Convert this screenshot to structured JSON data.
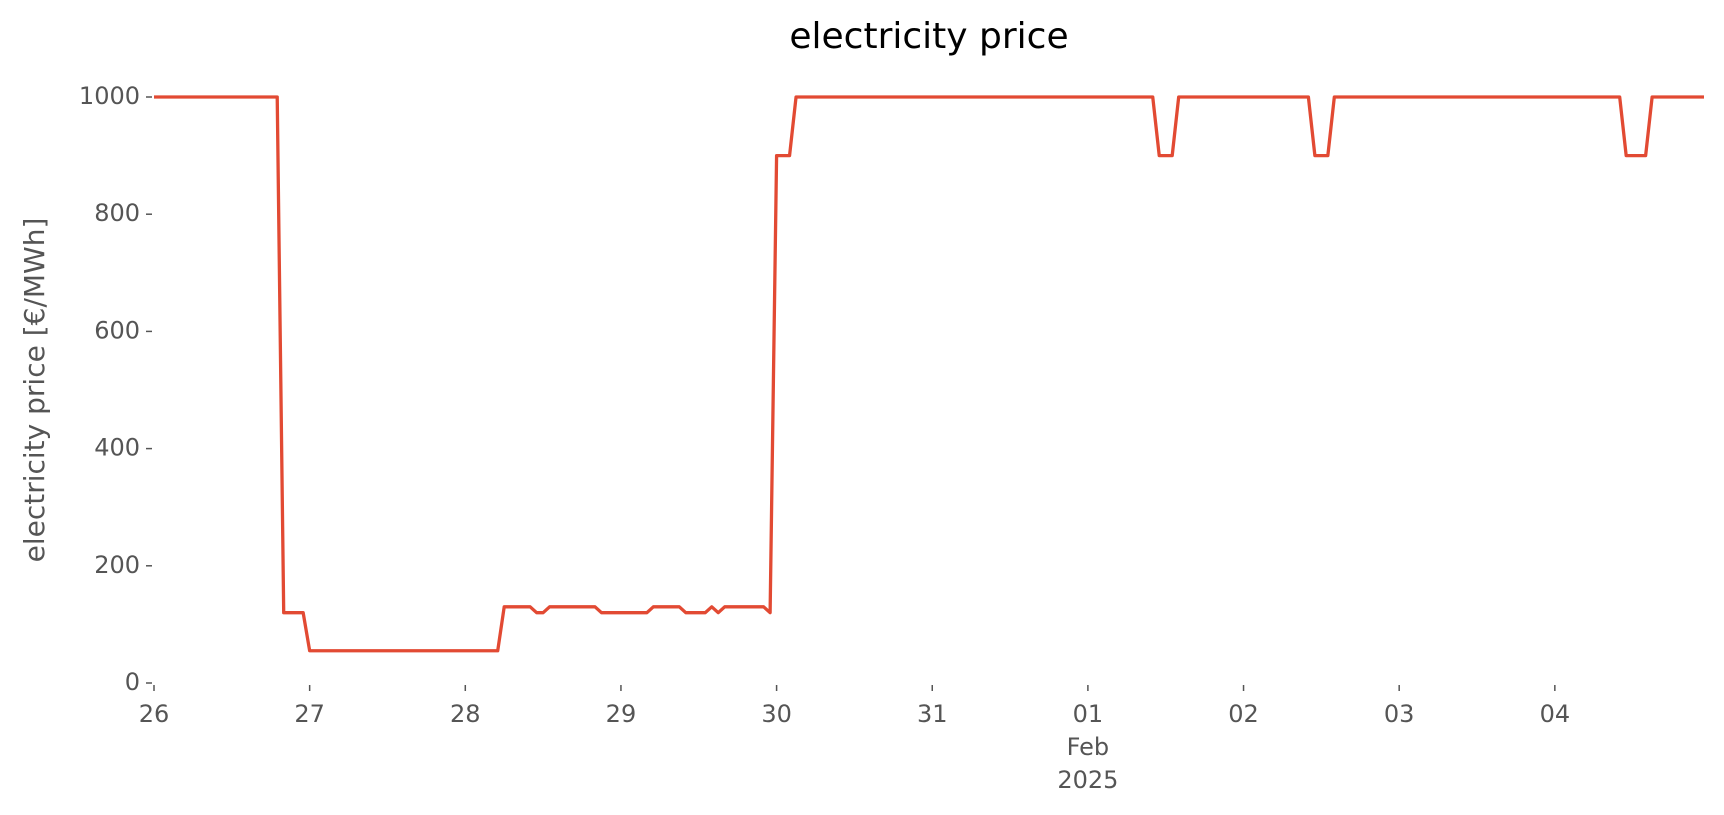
{
  "chart_data": {
    "type": "line",
    "title": "electricity price",
    "ylabel": "electricity price [€/MWh]",
    "x": [
      "2025-01-26T00:00",
      "2025-01-26T19:00",
      "2025-01-26T20:00",
      "2025-01-26T23:00",
      "2025-01-27T00:00",
      "2025-01-28T05:00",
      "2025-01-28T06:00",
      "2025-01-28T10:00",
      "2025-01-28T11:00",
      "2025-01-28T12:00",
      "2025-01-28T13:00",
      "2025-01-28T20:00",
      "2025-01-28T21:00",
      "2025-01-29T04:00",
      "2025-01-29T05:00",
      "2025-01-29T09:00",
      "2025-01-29T10:00",
      "2025-01-29T13:00",
      "2025-01-29T14:00",
      "2025-01-29T15:00",
      "2025-01-29T16:00",
      "2025-01-29T22:00",
      "2025-01-29T23:00",
      "2025-01-30T00:00",
      "2025-01-30T02:00",
      "2025-01-30T03:00",
      "2025-02-01T10:00",
      "2025-02-01T11:00",
      "2025-02-01T13:00",
      "2025-02-01T14:00",
      "2025-02-02T10:00",
      "2025-02-02T11:00",
      "2025-02-02T13:00",
      "2025-02-02T14:00",
      "2025-02-04T10:00",
      "2025-02-04T11:00",
      "2025-02-04T14:00",
      "2025-02-04T15:00",
      "2025-02-04T23:00"
    ],
    "series": [
      {
        "name": "electricity price",
        "color": "#E24A33",
        "values": [
          1000,
          1000,
          120,
          120,
          55,
          55,
          130,
          130,
          120,
          120,
          130,
          130,
          120,
          120,
          130,
          130,
          120,
          120,
          130,
          120,
          130,
          130,
          120,
          900,
          900,
          1000,
          1000,
          900,
          900,
          1000,
          1000,
          900,
          900,
          1000,
          1000,
          900,
          900,
          1000,
          1000
        ]
      }
    ],
    "xlim": [
      "2025-01-26T00:00",
      "2025-02-04T23:00"
    ],
    "xticks": [
      {
        "value": "2025-01-26T00:00",
        "label": "26"
      },
      {
        "value": "2025-01-27T00:00",
        "label": "27"
      },
      {
        "value": "2025-01-28T00:00",
        "label": "28"
      },
      {
        "value": "2025-01-29T00:00",
        "label": "29"
      },
      {
        "value": "2025-01-30T00:00",
        "label": "30"
      },
      {
        "value": "2025-01-31T00:00",
        "label": "31"
      },
      {
        "value": "2025-02-01T00:00",
        "label": "01\nFeb\n2025"
      },
      {
        "value": "2025-02-02T00:00",
        "label": "02"
      },
      {
        "value": "2025-02-03T00:00",
        "label": "03"
      },
      {
        "value": "2025-02-04T00:00",
        "label": "04"
      }
    ],
    "ylim": [
      0,
      1000
    ],
    "yticks": [
      0,
      200,
      400,
      600,
      800,
      1000
    ],
    "grid": false,
    "legend": false
  }
}
